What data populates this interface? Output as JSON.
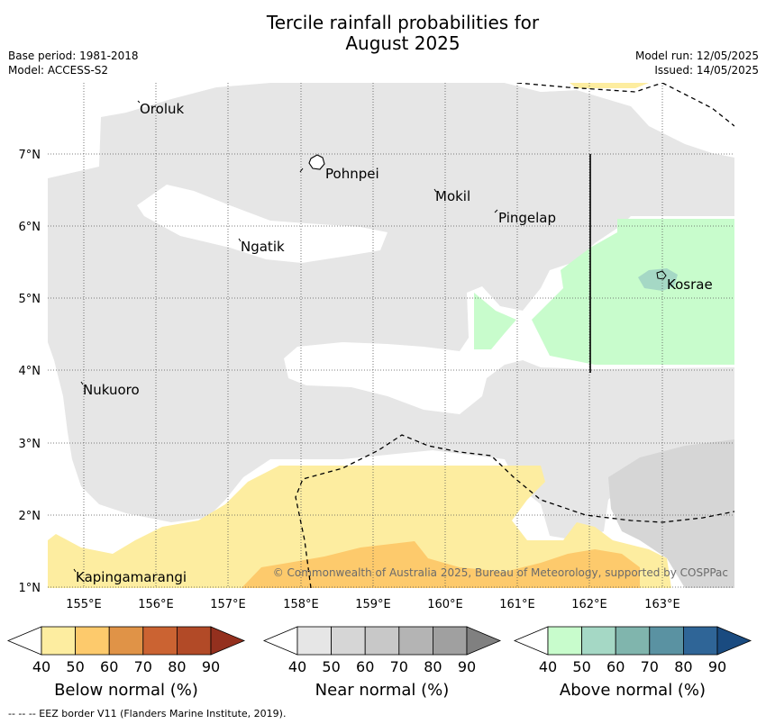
{
  "title_line1": "Tercile rainfall probabilities for",
  "title_line2": "August 2025",
  "meta_left": {
    "base_period": "Base period: 1981-2018",
    "model": "Model: ACCESS-S2"
  },
  "meta_right": {
    "model_run": "Model run: 12/05/2025",
    "issued": "Issued: 14/05/2025"
  },
  "map": {
    "lat_labels": [
      "7°N",
      "6°N",
      "5°N",
      "4°N",
      "3°N",
      "2°N",
      "1°N"
    ],
    "lon_labels": [
      "155°E",
      "156°E",
      "157°E",
      "158°E",
      "159°E",
      "160°E",
      "161°E",
      "162°E",
      "163°E"
    ],
    "places": {
      "oroluk": "Oroluk",
      "pohnpei": "Pohnpei",
      "mokil": "Mokil",
      "pingelap": "Pingelap",
      "ngatik": "Ngatik",
      "kosrae": "Kosrae",
      "nukuoro": "Nukuoro",
      "kapingamarangi": "Kapingamarangi"
    },
    "copyright": "© Commonwealth of Australia 2025, Bureau of Meteorology, supported by COSPPac"
  },
  "colorbars": {
    "ticks": [
      "40",
      "50",
      "60",
      "70",
      "80",
      "90"
    ],
    "below": {
      "label": "Below normal (%)",
      "colors": [
        "#ffffff",
        "#fdeda0",
        "#fdca6c",
        "#e09347",
        "#cb6332",
        "#b24a27",
        "#94301e"
      ]
    },
    "near": {
      "label": "Near normal (%)",
      "colors": [
        "#ffffff",
        "#e6e6e6",
        "#d6d6d6",
        "#c8c8c8",
        "#b4b4b4",
        "#a0a0a0",
        "#808080"
      ]
    },
    "above": {
      "label": "Above normal (%)",
      "colors": [
        "#ffffff",
        "#c8fccc",
        "#a5d8c5",
        "#80b5ad",
        "#5a92a2",
        "#2f6597",
        "#1a4b80"
      ]
    }
  },
  "eez_note": "-- -- -- EEZ border V11 (Flanders Marine Institute, 2019)."
}
